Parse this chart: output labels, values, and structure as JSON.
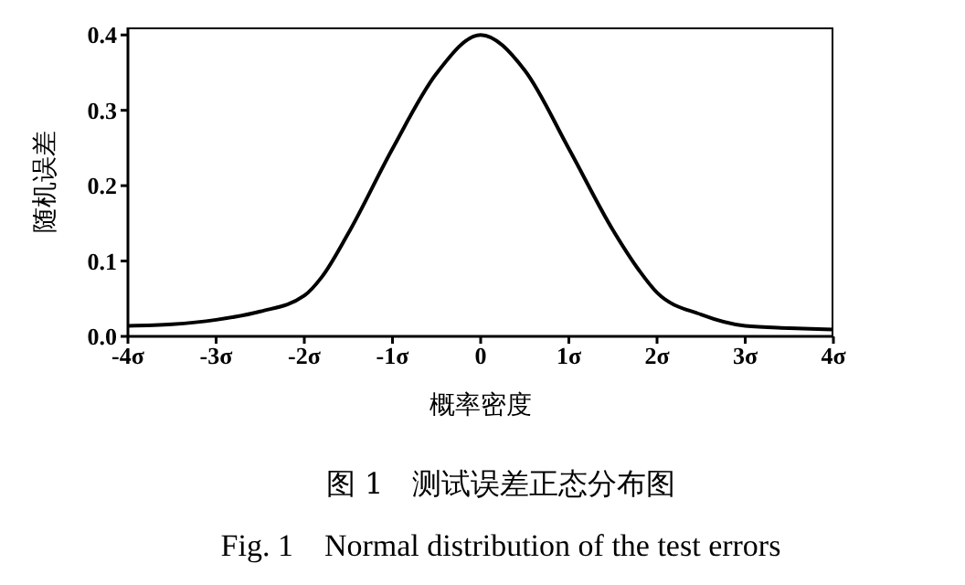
{
  "chart_data": {
    "type": "line",
    "xlabel": "概率密度",
    "ylabel": "随机误差",
    "annotations": [
      "图 1　测试误差正态分布图",
      "Fig. 1　Normal distribution of the test errors"
    ],
    "x": [
      -4,
      -3.5,
      -3,
      -2.5,
      -2,
      -1.8,
      -1.5,
      -1,
      -0.5,
      0,
      0.5,
      1,
      1.5,
      1.8,
      2,
      2.5,
      3,
      3.5,
      4
    ],
    "series": [
      {
        "color": "#000000",
        "values": [
          0.014,
          0.016,
          0.022,
          0.033,
          0.054,
          0.079,
          0.137,
          0.249,
          0.349,
          0.4,
          0.353,
          0.249,
          0.141,
          0.087,
          0.058,
          0.029,
          0.014,
          0.011,
          0.009
        ]
      }
    ],
    "xlim": [
      -4,
      4
    ],
    "xticks": [
      {
        "value": -4,
        "label": "-4σ"
      },
      {
        "value": -3,
        "label": "-3σ"
      },
      {
        "value": -2,
        "label": "-2σ"
      },
      {
        "value": -1,
        "label": "-1σ"
      },
      0,
      {
        "value": 1,
        "label": "1σ"
      },
      {
        "value": 2,
        "label": "2σ"
      },
      {
        "value": 3,
        "label": "3σ"
      },
      {
        "value": 4,
        "label": "4σ"
      }
    ],
    "ylim": [
      0,
      0.41
    ],
    "yticks": [
      {
        "value": 0,
        "label": "0.0"
      },
      0.1,
      0.2,
      0.3,
      0.4
    ],
    "grid": false,
    "legend": false,
    "marker": "none",
    "line_style": "solid"
  }
}
